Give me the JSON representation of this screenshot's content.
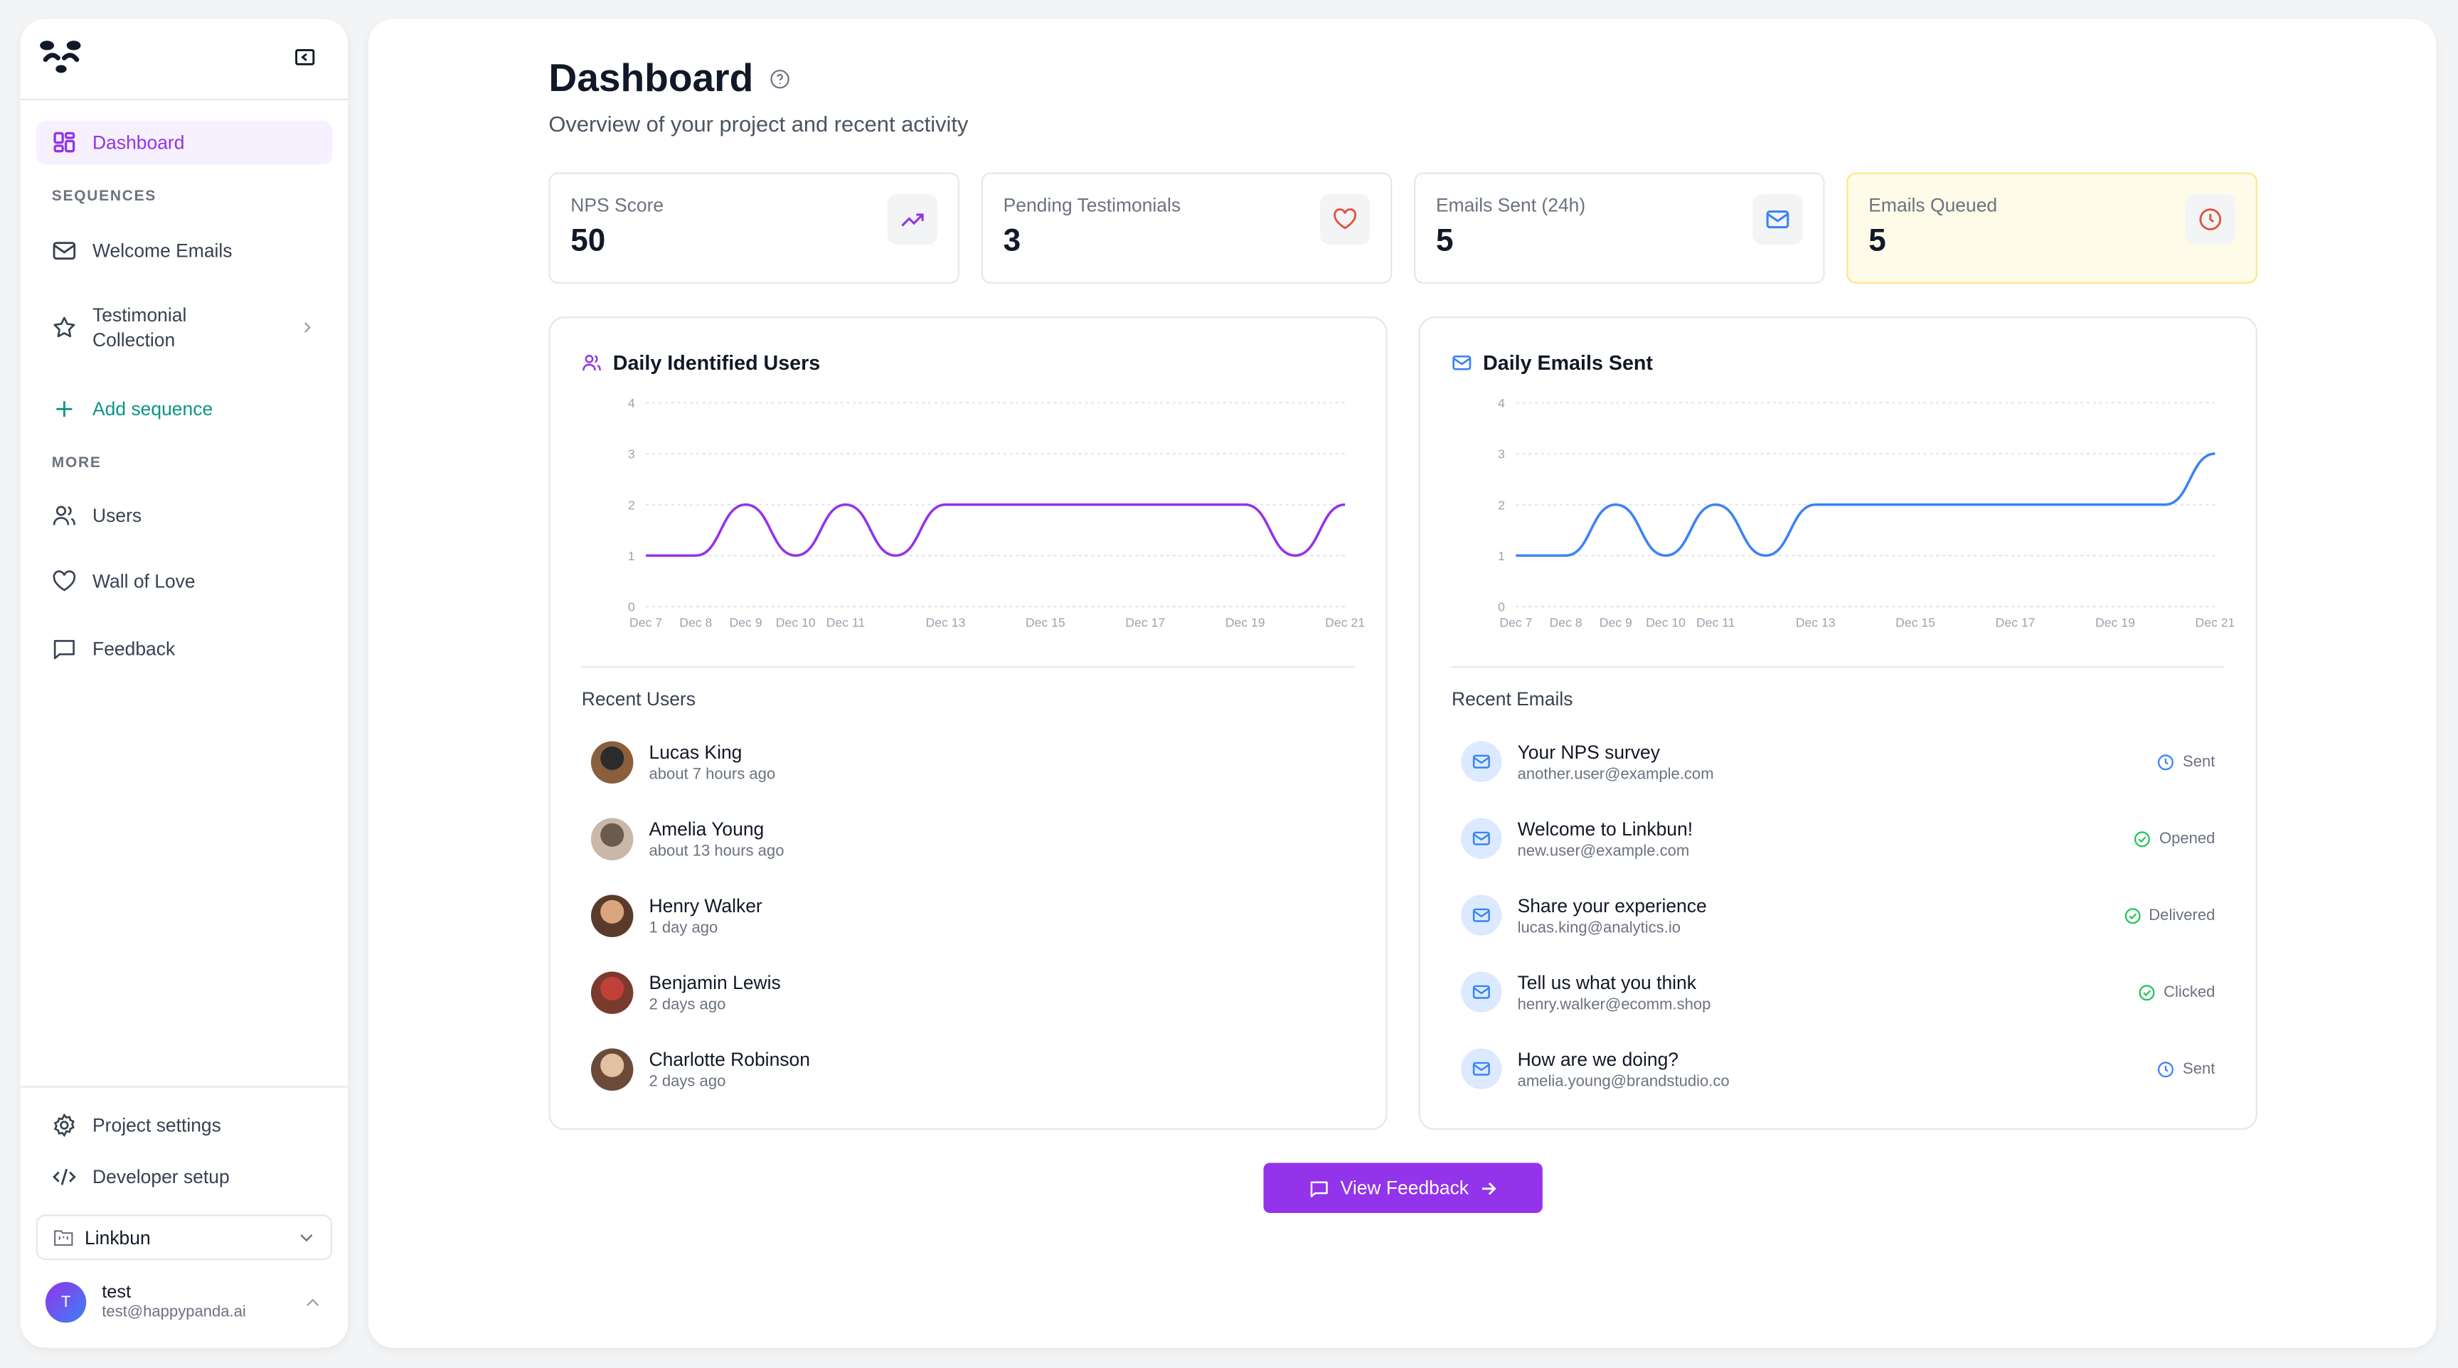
{
  "sidebar": {
    "nav": [
      {
        "label": "Dashboard",
        "icon": "dashboard-grid-icon",
        "active": true
      }
    ],
    "sections": [
      {
        "title": "SEQUENCES",
        "items": [
          {
            "label": "Welcome Emails",
            "icon": "mail-icon"
          },
          {
            "label": "Testimonial Collection",
            "icon": "star-icon"
          },
          {
            "label": "Add sequence",
            "icon": "plus-icon"
          }
        ]
      },
      {
        "title": "MORE",
        "items": [
          {
            "label": "Users",
            "icon": "users-icon"
          },
          {
            "label": "Wall of Love",
            "icon": "heart-icon"
          },
          {
            "label": "Feedback",
            "icon": "message-square-icon"
          }
        ]
      }
    ],
    "footer": [
      {
        "label": "Project settings",
        "icon": "gear-icon"
      },
      {
        "label": "Developer setup",
        "icon": "code-icon"
      }
    ],
    "project_select": {
      "value": "Linkbun"
    },
    "user": {
      "initial": "T",
      "name": "test",
      "email": "test@happypanda.ai"
    }
  },
  "header": {
    "title": "Dashboard",
    "subtitle": "Overview of your project and recent activity"
  },
  "stats": [
    {
      "label": "NPS Score",
      "value": "50",
      "icon": "trending-up-icon",
      "color": "#9333ea"
    },
    {
      "label": "Pending Testimonials",
      "value": "3",
      "icon": "heart-icon",
      "color": "#e0533d"
    },
    {
      "label": "Emails Sent (24h)",
      "value": "5",
      "icon": "mail-icon",
      "color": "#3b82f6"
    },
    {
      "label": "Emails Queued",
      "value": "5",
      "icon": "clock-icon",
      "color": "#e0533d",
      "highlight": "#fefbe8"
    }
  ],
  "chart_data": [
    {
      "type": "line",
      "title": "Daily Identified Users",
      "color": "#9333ea",
      "x": [
        "Dec 7",
        "Dec 8",
        "Dec 9",
        "Dec 10",
        "Dec 11",
        "Dec 12",
        "Dec 13",
        "Dec 14",
        "Dec 15",
        "Dec 16",
        "Dec 17",
        "Dec 18",
        "Dec 19",
        "Dec 20",
        "Dec 21"
      ],
      "x_tick_labels": [
        "Dec 7",
        "Dec 8",
        "Dec 9",
        "Dec 10",
        "Dec 11",
        "Dec 13",
        "Dec 15",
        "Dec 17",
        "Dec 19",
        "Dec 21"
      ],
      "values": [
        1,
        1,
        2,
        1,
        2,
        1,
        2,
        2,
        2,
        2,
        2,
        2,
        2,
        1,
        2
      ],
      "ylim": [
        0,
        4
      ],
      "y_ticks": [
        0,
        1,
        2,
        3,
        4
      ],
      "grid": "horizontal dashed"
    },
    {
      "type": "line",
      "title": "Daily Emails Sent",
      "color": "#3b82f6",
      "x": [
        "Dec 7",
        "Dec 8",
        "Dec 9",
        "Dec 10",
        "Dec 11",
        "Dec 12",
        "Dec 13",
        "Dec 14",
        "Dec 15",
        "Dec 16",
        "Dec 17",
        "Dec 18",
        "Dec 19",
        "Dec 20",
        "Dec 21"
      ],
      "x_tick_labels": [
        "Dec 7",
        "Dec 8",
        "Dec 9",
        "Dec 10",
        "Dec 11",
        "Dec 13",
        "Dec 15",
        "Dec 17",
        "Dec 19",
        "Dec 21"
      ],
      "values": [
        1,
        1,
        2,
        1,
        2,
        1,
        2,
        2,
        2,
        2,
        2,
        2,
        2,
        2,
        3
      ],
      "ylim": [
        0,
        4
      ],
      "y_ticks": [
        0,
        1,
        2,
        3,
        4
      ],
      "grid": "horizontal dashed"
    }
  ],
  "recent_users": {
    "title": "Recent Users",
    "items": [
      {
        "name": "Lucas King",
        "time": "about 7 hours ago"
      },
      {
        "name": "Amelia Young",
        "time": "about 13 hours ago"
      },
      {
        "name": "Henry Walker",
        "time": "1 day ago"
      },
      {
        "name": "Benjamin Lewis",
        "time": "2 days ago"
      },
      {
        "name": "Charlotte Robinson",
        "time": "2 days ago"
      }
    ]
  },
  "recent_emails": {
    "title": "Recent Emails",
    "items": [
      {
        "subject": "Your NPS survey",
        "to": "another.user@example.com",
        "status": "Sent",
        "status_icon": "clock-icon",
        "color": "#3b82f6"
      },
      {
        "subject": "Welcome to Linkbun!",
        "to": "new.user@example.com",
        "status": "Opened",
        "status_icon": "check-circle-icon",
        "color": "#22c55e"
      },
      {
        "subject": "Share your experience",
        "to": "lucas.king@analytics.io",
        "status": "Delivered",
        "status_icon": "check-circle-icon",
        "color": "#22c55e"
      },
      {
        "subject": "Tell us what you think",
        "to": "henry.walker@ecomm.shop",
        "status": "Clicked",
        "status_icon": "check-circle-icon",
        "color": "#22c55e"
      },
      {
        "subject": "How are we doing?",
        "to": "amelia.young@brandstudio.co",
        "status": "Sent",
        "status_icon": "clock-icon",
        "color": "#3b82f6"
      }
    ]
  },
  "cta": {
    "label": "View Feedback"
  }
}
